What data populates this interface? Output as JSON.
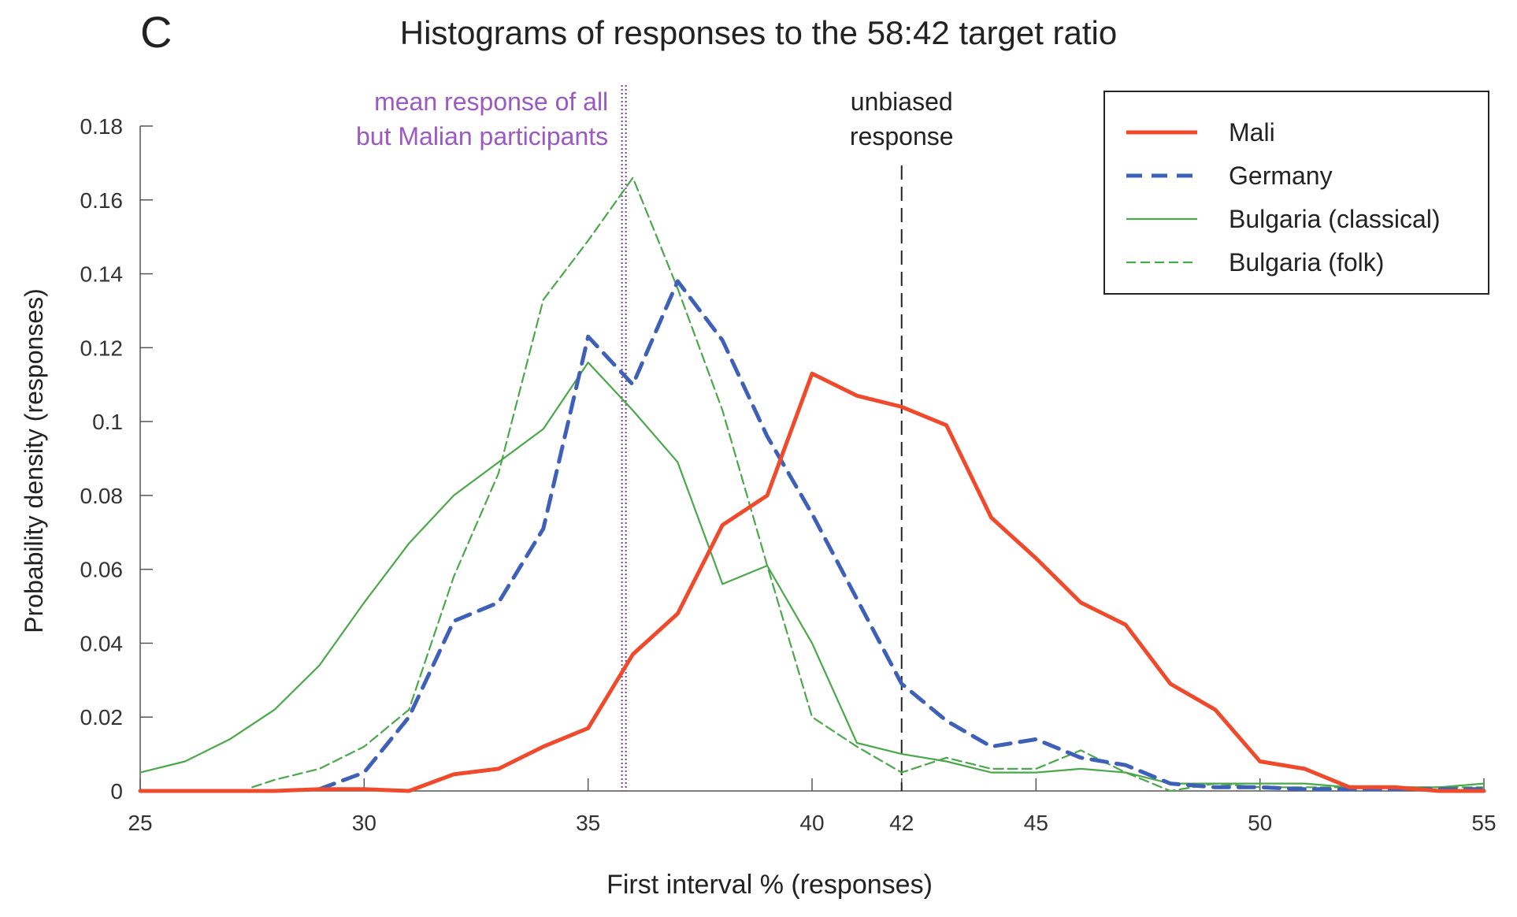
{
  "panel_letter": "C",
  "chart_data": {
    "type": "line",
    "title": "Histograms of responses to the 58:42 target ratio",
    "xlabel": "First interval % (responses)",
    "ylabel": "Probability density (responses)",
    "xlim": [
      25,
      55
    ],
    "ylim": [
      0,
      0.18
    ],
    "xticks": [
      {
        "value": 25,
        "label": "25"
      },
      {
        "value": 30,
        "label": "30"
      },
      {
        "value": 35,
        "label": "35"
      },
      {
        "value": 40,
        "label": "40"
      },
      {
        "value": 42,
        "label": "42"
      },
      {
        "value": 45,
        "label": "45"
      },
      {
        "value": 50,
        "label": "50"
      },
      {
        "value": 55,
        "label": "55"
      }
    ],
    "yticks": [
      {
        "value": 0,
        "label": "0"
      },
      {
        "value": 0.02,
        "label": "0.02"
      },
      {
        "value": 0.04,
        "label": "0.04"
      },
      {
        "value": 0.06,
        "label": "0.06"
      },
      {
        "value": 0.08,
        "label": "0.08"
      },
      {
        "value": 0.1,
        "label": "0.1"
      },
      {
        "value": 0.12,
        "label": "0.12"
      },
      {
        "value": 0.14,
        "label": "0.14"
      },
      {
        "value": 0.16,
        "label": "0.16"
      },
      {
        "value": 0.18,
        "label": "0.18"
      }
    ],
    "grid": false,
    "legend_position": "top-right",
    "series": [
      {
        "name": "Mali",
        "color": "#f04a2c",
        "style": "solid-thick",
        "x": [
          25,
          26,
          27,
          28,
          29,
          30,
          31,
          32,
          33,
          34,
          35,
          36,
          37,
          38,
          39,
          40,
          41,
          42,
          43,
          44,
          45,
          46,
          47,
          48,
          49,
          50,
          51,
          52,
          53,
          54,
          55
        ],
        "y": [
          0,
          0,
          0,
          0,
          0.0005,
          0.0005,
          0,
          0.0045,
          0.006,
          0.012,
          0.017,
          0.037,
          0.048,
          0.072,
          0.08,
          0.113,
          0.107,
          0.104,
          0.099,
          0.074,
          0.063,
          0.051,
          0.045,
          0.029,
          0.022,
          0.008,
          0.006,
          0.001,
          0.001,
          0,
          0
        ]
      },
      {
        "name": "Germany",
        "color": "#3f60b8",
        "style": "dashed-thick",
        "x": [
          29,
          30,
          31,
          32,
          33,
          34,
          35,
          36,
          37,
          38,
          39,
          40,
          41,
          42,
          43,
          44,
          45,
          46,
          47,
          48,
          49,
          50,
          51,
          52,
          53,
          54,
          55
        ],
        "y": [
          0.0005,
          0.005,
          0.02,
          0.046,
          0.051,
          0.071,
          0.123,
          0.11,
          0.138,
          0.122,
          0.096,
          0.075,
          0.052,
          0.029,
          0.019,
          0.012,
          0.014,
          0.009,
          0.007,
          0.002,
          0.001,
          0.001,
          0.0005,
          0.0005,
          0.0005,
          0.0005,
          0.0005
        ]
      },
      {
        "name": "Bulgaria (classical)",
        "color": "#4aa84a",
        "style": "solid-thin",
        "x": [
          25,
          26,
          27,
          28,
          29,
          30,
          31,
          32,
          33,
          34,
          35,
          36,
          37,
          38,
          39,
          40,
          41,
          42,
          43,
          44,
          45,
          46,
          47,
          48,
          49,
          50,
          51,
          52,
          53,
          54,
          55
        ],
        "y": [
          0.005,
          0.008,
          0.014,
          0.022,
          0.034,
          0.051,
          0.067,
          0.08,
          0.089,
          0.098,
          0.116,
          0.103,
          0.089,
          0.056,
          0.061,
          0.04,
          0.013,
          0.01,
          0.008,
          0.005,
          0.005,
          0.006,
          0.005,
          0.002,
          0.002,
          0.002,
          0.002,
          0.001,
          0.001,
          0.001,
          0.002
        ]
      },
      {
        "name": "Bulgaria (folk)",
        "color": "#4aa84a",
        "style": "dashed-thin",
        "x": [
          27.5,
          28,
          29,
          30,
          31,
          32,
          33,
          34,
          35,
          36,
          37,
          38,
          39,
          40,
          41,
          42,
          43,
          44,
          45,
          46,
          47,
          48,
          49,
          50,
          51,
          52,
          53,
          54,
          55
        ],
        "y": [
          0.001,
          0.003,
          0.006,
          0.012,
          0.022,
          0.058,
          0.086,
          0.133,
          0.149,
          0.166,
          0.136,
          0.103,
          0.061,
          0.02,
          0.012,
          0.005,
          0.009,
          0.006,
          0.006,
          0.011,
          0.005,
          0,
          0.002,
          0.001,
          0.001,
          0.001,
          0.001,
          0.001,
          0.001
        ]
      }
    ],
    "reference_lines": [
      {
        "x": 35.8,
        "color": "#7a3fa0",
        "style": "dotted-double",
        "label_lines": [
          "mean response of all",
          "but Malian participants"
        ]
      },
      {
        "x": 42,
        "color": "#222222",
        "style": "dashed",
        "label_lines": [
          "unbiased",
          "response"
        ]
      }
    ]
  }
}
